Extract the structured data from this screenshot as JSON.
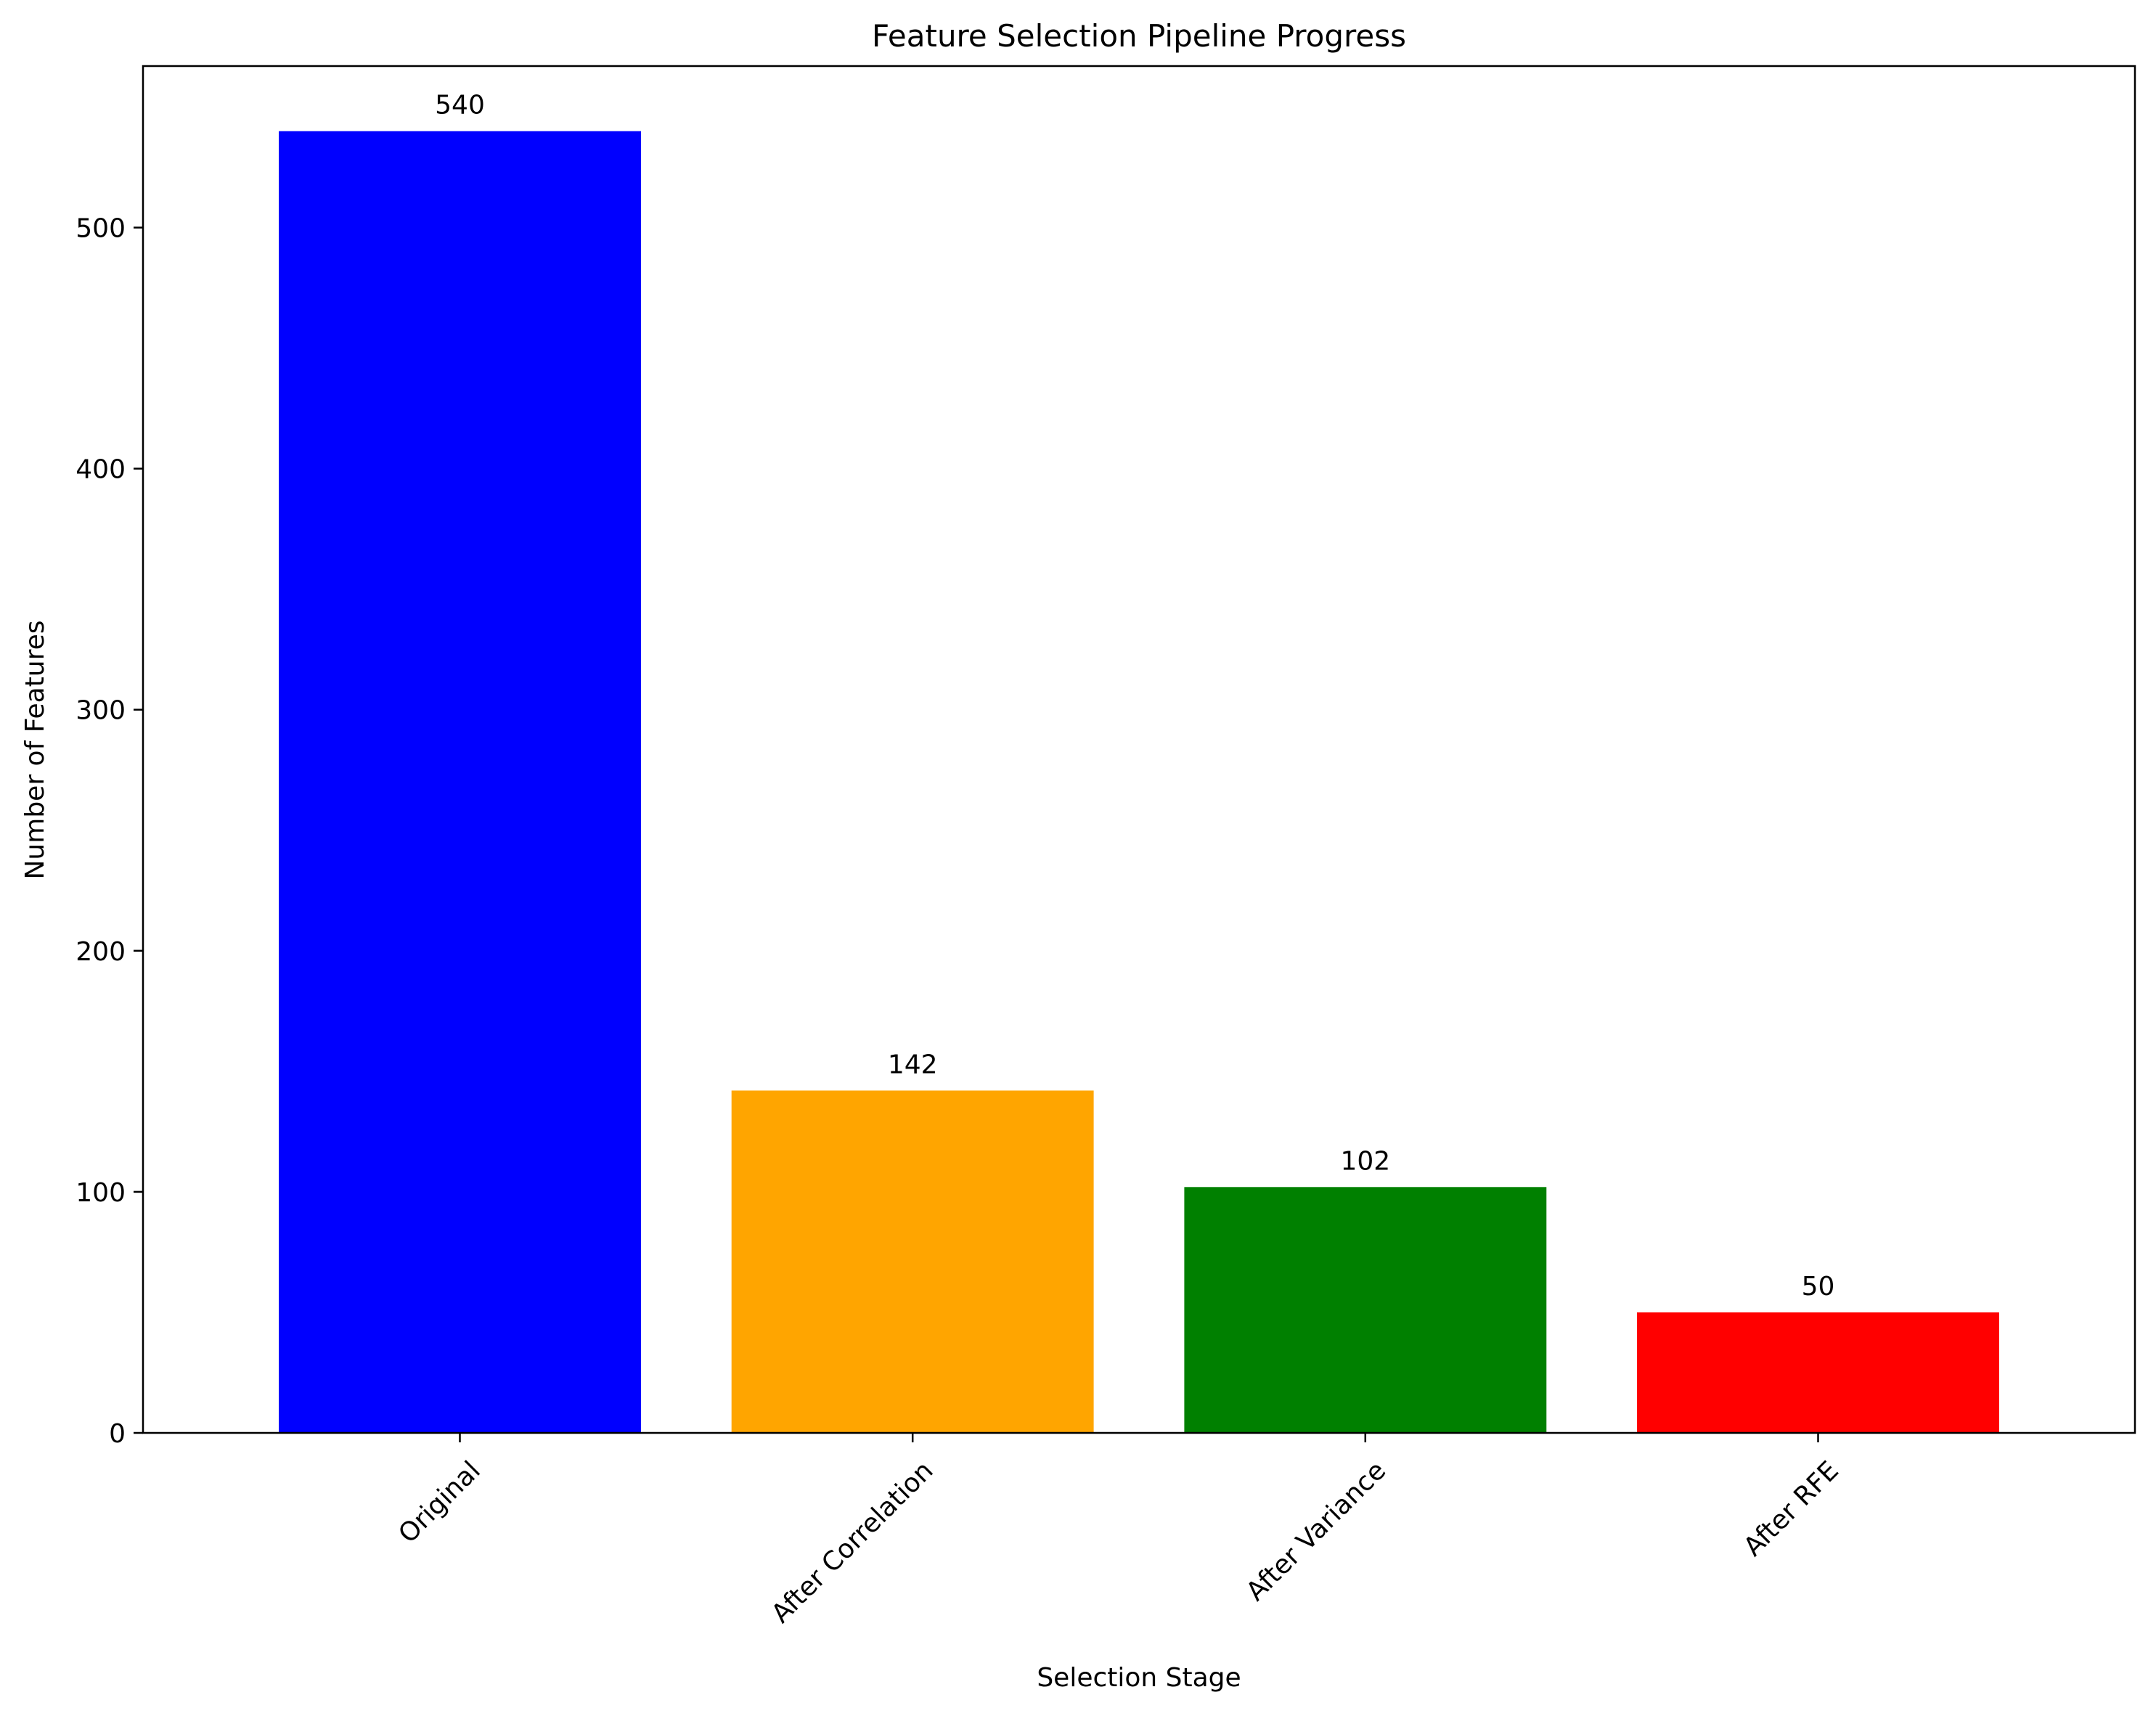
{
  "chart_data": {
    "type": "bar",
    "title": "Feature Selection Pipeline Progress",
    "xlabel": "Selection Stage",
    "ylabel": "Number of Features",
    "categories": [
      "Original",
      "After Correlation",
      "After Variance",
      "After RFE"
    ],
    "values": [
      540,
      142,
      102,
      50
    ],
    "data_labels": [
      "540",
      "142",
      "102",
      "50"
    ],
    "colors": [
      "#0000ff",
      "#ffa500",
      "#008000",
      "#ff0000"
    ],
    "ylim": [
      0,
      567
    ],
    "yticks": [
      0,
      100,
      200,
      300,
      400,
      500
    ],
    "ytick_labels": [
      "0",
      "100",
      "200",
      "300",
      "400",
      "500"
    ],
    "xtick_rotation_deg": 45,
    "grid": false,
    "legend": "none"
  }
}
